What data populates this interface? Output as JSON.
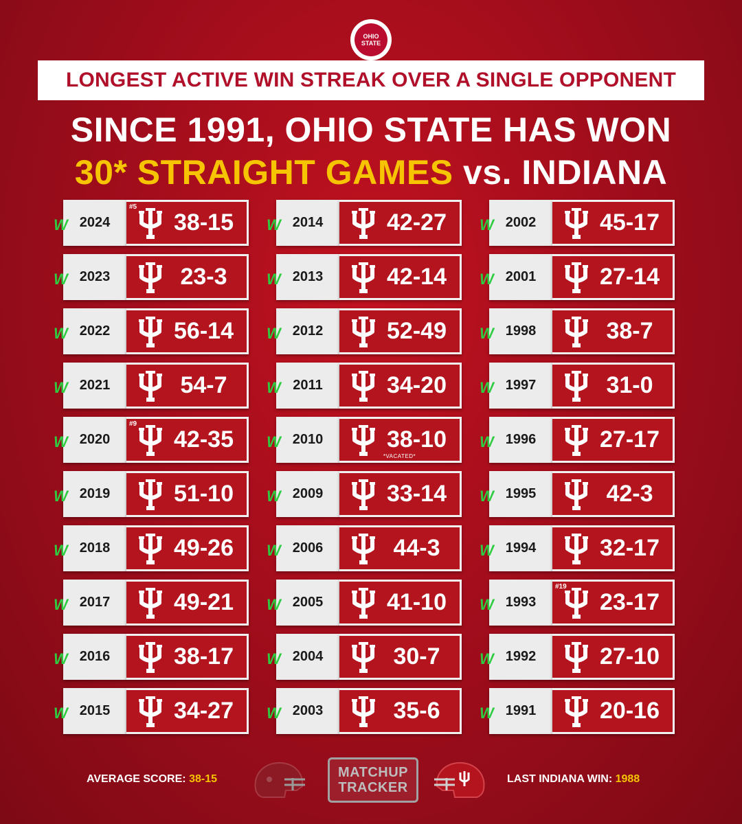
{
  "logo_text": "OHIO STATE",
  "banner": "LONGEST ACTIVE WIN STREAK OVER A SINGLE OPPONENT",
  "headline_line1": "SINCE 1991, OHIO STATE HAS WON",
  "headline_streak": "30* STRAIGHT GAMES",
  "headline_vs": "vs. INDIANA",
  "win_marker": "W",
  "colors": {
    "gold": "#f6c400",
    "win_green": "#2ecc40",
    "card_red": "#b3141d"
  },
  "columns": [
    [
      {
        "year": "2024",
        "score": "38-15",
        "rank": "#5",
        "note": ""
      },
      {
        "year": "2023",
        "score": "23-3",
        "rank": "",
        "note": ""
      },
      {
        "year": "2022",
        "score": "56-14",
        "rank": "",
        "note": ""
      },
      {
        "year": "2021",
        "score": "54-7",
        "rank": "",
        "note": ""
      },
      {
        "year": "2020",
        "score": "42-35",
        "rank": "#9",
        "note": ""
      },
      {
        "year": "2019",
        "score": "51-10",
        "rank": "",
        "note": ""
      },
      {
        "year": "2018",
        "score": "49-26",
        "rank": "",
        "note": ""
      },
      {
        "year": "2017",
        "score": "49-21",
        "rank": "",
        "note": ""
      },
      {
        "year": "2016",
        "score": "38-17",
        "rank": "",
        "note": ""
      },
      {
        "year": "2015",
        "score": "34-27",
        "rank": "",
        "note": ""
      }
    ],
    [
      {
        "year": "2014",
        "score": "42-27",
        "rank": "",
        "note": ""
      },
      {
        "year": "2013",
        "score": "42-14",
        "rank": "",
        "note": ""
      },
      {
        "year": "2012",
        "score": "52-49",
        "rank": "",
        "note": ""
      },
      {
        "year": "2011",
        "score": "34-20",
        "rank": "",
        "note": ""
      },
      {
        "year": "2010",
        "score": "38-10",
        "rank": "",
        "note": "*VACATED*"
      },
      {
        "year": "2009",
        "score": "33-14",
        "rank": "",
        "note": ""
      },
      {
        "year": "2006",
        "score": "44-3",
        "rank": "",
        "note": ""
      },
      {
        "year": "2005",
        "score": "41-10",
        "rank": "",
        "note": ""
      },
      {
        "year": "2004",
        "score": "30-7",
        "rank": "",
        "note": ""
      },
      {
        "year": "2003",
        "score": "35-6",
        "rank": "",
        "note": ""
      }
    ],
    [
      {
        "year": "2002",
        "score": "45-17",
        "rank": "",
        "note": ""
      },
      {
        "year": "2001",
        "score": "27-14",
        "rank": "",
        "note": ""
      },
      {
        "year": "1998",
        "score": "38-7",
        "rank": "",
        "note": ""
      },
      {
        "year": "1997",
        "score": "31-0",
        "rank": "",
        "note": ""
      },
      {
        "year": "1996",
        "score": "27-17",
        "rank": "",
        "note": ""
      },
      {
        "year": "1995",
        "score": "42-3",
        "rank": "",
        "note": ""
      },
      {
        "year": "1994",
        "score": "32-17",
        "rank": "",
        "note": ""
      },
      {
        "year": "1993",
        "score": "23-17",
        "rank": "#19",
        "note": ""
      },
      {
        "year": "1992",
        "score": "27-10",
        "rank": "",
        "note": ""
      },
      {
        "year": "1991",
        "score": "20-16",
        "rank": "",
        "note": ""
      }
    ]
  ],
  "footer": {
    "avg_label": "AVERAGE SCORE: ",
    "avg_value": "38-15",
    "tracker_line1": "MATCHUP",
    "tracker_line2": "TRACKER",
    "last_win_label": "LAST INDIANA WIN: ",
    "last_win_value": "1988"
  }
}
